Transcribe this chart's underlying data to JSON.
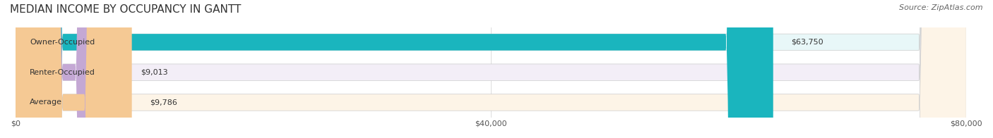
{
  "title": "MEDIAN INCOME BY OCCUPANCY IN GANTT",
  "source": "Source: ZipAtlas.com",
  "categories": [
    "Owner-Occupied",
    "Renter-Occupied",
    "Average"
  ],
  "values": [
    63750,
    9013,
    9786
  ],
  "labels": [
    "$63,750",
    "$9,013",
    "$9,786"
  ],
  "bar_colors": [
    "#1ab5be",
    "#c4a8d4",
    "#f5c994"
  ],
  "bar_bg_colors": [
    "#e8f7f8",
    "#f3eef7",
    "#fdf4e7"
  ],
  "xlim": [
    0,
    80000
  ],
  "xticks": [
    0,
    40000,
    80000
  ],
  "xtick_labels": [
    "$0",
    "$40,000",
    "$80,000"
  ],
  "title_fontsize": 11,
  "source_fontsize": 8,
  "label_fontsize": 8,
  "bar_height": 0.55,
  "bar_label_color": "#333333",
  "title_color": "#333333",
  "source_color": "#666666",
  "category_fontsize": 8
}
